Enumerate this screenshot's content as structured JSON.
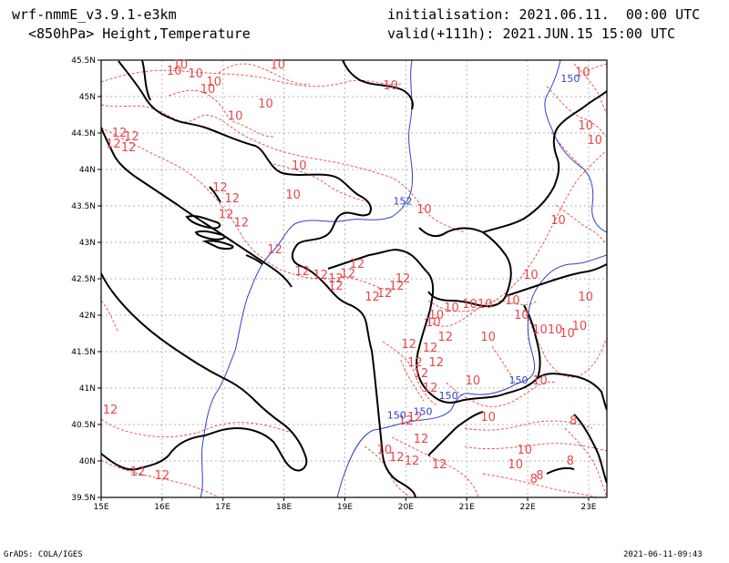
{
  "header": {
    "model": "wrf-nmmE_v3.9.1-e3km",
    "field": "<850hPa> Height,Temperature",
    "init_label": "initialisation:",
    "init_value": "2021.06.11.  00:00 UTC",
    "valid_label": "valid(+111h):",
    "valid_value": "2021.JUN.15 15:00 UTC"
  },
  "footer": {
    "left": "GrADS: COLA/IGES",
    "right": "2021-06-11-09:43"
  },
  "map": {
    "lon_range": [
      15,
      23.3
    ],
    "lat_range": [
      39.5,
      45.5
    ],
    "lon_ticks": [
      "15E",
      "16E",
      "17E",
      "18E",
      "19E",
      "20E",
      "21E",
      "22E",
      "23E"
    ],
    "lat_ticks": [
      "39.5N",
      "40N",
      "40.5N",
      "41N",
      "41.5N",
      "42N",
      "42.5N",
      "43N",
      "43.5N",
      "44N",
      "44.5N",
      "45N",
      "45.5N"
    ],
    "colors": {
      "temperature": "#e8474a",
      "height": "#3040c8",
      "border": "#000000",
      "grid": "#9a9a9a"
    },
    "height_labels": [
      {
        "text": "150",
        "lon": 22.7,
        "lat": 45.2
      },
      {
        "text": "152",
        "lon": 19.95,
        "lat": 43.52
      },
      {
        "text": "150",
        "lon": 21.85,
        "lat": 41.06
      },
      {
        "text": "150",
        "lon": 20.7,
        "lat": 40.85
      },
      {
        "text": "150",
        "lon": 20.28,
        "lat": 40.63
      },
      {
        "text": "150",
        "lon": 19.85,
        "lat": 40.58
      }
    ],
    "temp_labels": [
      {
        "text": "10",
        "lon": 16.3,
        "lat": 45.38
      },
      {
        "text": "10",
        "lon": 16.55,
        "lat": 45.26
      },
      {
        "text": "10",
        "lon": 16.85,
        "lat": 45.15
      },
      {
        "text": "10",
        "lon": 16.75,
        "lat": 45.05
      },
      {
        "text": "10",
        "lon": 16.2,
        "lat": 45.3
      },
      {
        "text": "10",
        "lon": 17.9,
        "lat": 45.38
      },
      {
        "text": "10",
        "lon": 19.75,
        "lat": 45.1
      },
      {
        "text": "10",
        "lon": 17.2,
        "lat": 44.68
      },
      {
        "text": "10",
        "lon": 17.7,
        "lat": 44.85
      },
      {
        "text": "12",
        "lon": 15.3,
        "lat": 44.45
      },
      {
        "text": "12",
        "lon": 15.5,
        "lat": 44.4
      },
      {
        "text": "12",
        "lon": 15.2,
        "lat": 44.3
      },
      {
        "text": "12",
        "lon": 15.45,
        "lat": 44.25
      },
      {
        "text": "10",
        "lon": 18.25,
        "lat": 44.0
      },
      {
        "text": "10",
        "lon": 18.15,
        "lat": 43.6
      },
      {
        "text": "12",
        "lon": 16.95,
        "lat": 43.7
      },
      {
        "text": "12",
        "lon": 17.15,
        "lat": 43.55
      },
      {
        "text": "12",
        "lon": 17.05,
        "lat": 43.33
      },
      {
        "text": "12",
        "lon": 17.3,
        "lat": 43.22
      },
      {
        "text": "12",
        "lon": 17.85,
        "lat": 42.85
      },
      {
        "text": "12",
        "lon": 18.3,
        "lat": 42.55
      },
      {
        "text": "12",
        "lon": 18.6,
        "lat": 42.5
      },
      {
        "text": "12",
        "lon": 18.85,
        "lat": 42.45
      },
      {
        "text": "12",
        "lon": 19.05,
        "lat": 42.52
      },
      {
        "text": "12",
        "lon": 19.2,
        "lat": 42.65
      },
      {
        "text": "12",
        "lon": 18.85,
        "lat": 42.35
      },
      {
        "text": "12",
        "lon": 19.45,
        "lat": 42.2
      },
      {
        "text": "12",
        "lon": 19.65,
        "lat": 42.25
      },
      {
        "text": "12",
        "lon": 19.85,
        "lat": 42.35
      },
      {
        "text": "12",
        "lon": 19.95,
        "lat": 42.45
      },
      {
        "text": "10",
        "lon": 20.3,
        "lat": 43.4
      },
      {
        "text": "10",
        "lon": 22.05,
        "lat": 42.5
      },
      {
        "text": "10",
        "lon": 21.75,
        "lat": 42.15
      },
      {
        "text": "10",
        "lon": 21.3,
        "lat": 42.1
      },
      {
        "text": "10",
        "lon": 20.5,
        "lat": 41.95
      },
      {
        "text": "10",
        "lon": 20.75,
        "lat": 42.05
      },
      {
        "text": "10",
        "lon": 21.05,
        "lat": 42.1
      },
      {
        "text": "10",
        "lon": 20.45,
        "lat": 41.85
      },
      {
        "text": "10",
        "lon": 21.9,
        "lat": 41.95
      },
      {
        "text": "10",
        "lon": 21.35,
        "lat": 41.65
      },
      {
        "text": "10",
        "lon": 22.2,
        "lat": 41.75
      },
      {
        "text": "10",
        "lon": 22.45,
        "lat": 41.75
      },
      {
        "text": "10",
        "lon": 22.65,
        "lat": 41.7
      },
      {
        "text": "10",
        "lon": 22.85,
        "lat": 41.8
      },
      {
        "text": "10",
        "lon": 22.5,
        "lat": 43.25
      },
      {
        "text": "10",
        "lon": 22.95,
        "lat": 44.55
      },
      {
        "text": "10",
        "lon": 23.1,
        "lat": 44.35
      },
      {
        "text": "10",
        "lon": 22.95,
        "lat": 42.2
      },
      {
        "text": "10",
        "lon": 22.9,
        "lat": 45.28
      },
      {
        "text": "12",
        "lon": 20.05,
        "lat": 41.55
      },
      {
        "text": "12",
        "lon": 20.4,
        "lat": 41.5
      },
      {
        "text": "12",
        "lon": 20.65,
        "lat": 41.65
      },
      {
        "text": "12",
        "lon": 20.15,
        "lat": 41.3
      },
      {
        "text": "12",
        "lon": 20.5,
        "lat": 41.3
      },
      {
        "text": "12",
        "lon": 20.25,
        "lat": 41.15
      },
      {
        "text": "12",
        "lon": 20.4,
        "lat": 40.95
      },
      {
        "text": "10",
        "lon": 21.1,
        "lat": 41.05
      },
      {
        "text": "10",
        "lon": 22.2,
        "lat": 41.05
      },
      {
        "text": "12",
        "lon": 15.15,
        "lat": 40.65
      },
      {
        "text": "12",
        "lon": 20.0,
        "lat": 40.5
      },
      {
        "text": "12",
        "lon": 20.15,
        "lat": 40.55
      },
      {
        "text": "12",
        "lon": 20.25,
        "lat": 40.25
      },
      {
        "text": "10",
        "lon": 19.65,
        "lat": 40.1
      },
      {
        "text": "12",
        "lon": 19.85,
        "lat": 40.0
      },
      {
        "text": "12",
        "lon": 20.1,
        "lat": 39.95
      },
      {
        "text": "12",
        "lon": 20.55,
        "lat": 39.9
      },
      {
        "text": "10",
        "lon": 21.8,
        "lat": 39.9
      },
      {
        "text": "10",
        "lon": 21.95,
        "lat": 40.1
      },
      {
        "text": "10",
        "lon": 21.35,
        "lat": 40.55
      },
      {
        "text": "8",
        "lon": 22.75,
        "lat": 40.5
      },
      {
        "text": "8",
        "lon": 22.7,
        "lat": 39.95
      },
      {
        "text": "8",
        "lon": 22.2,
        "lat": 39.75
      },
      {
        "text": "8",
        "lon": 22.1,
        "lat": 39.7
      },
      {
        "text": "12",
        "lon": 15.6,
        "lat": 39.8
      },
      {
        "text": "12",
        "lon": 16.0,
        "lat": 39.75
      }
    ]
  }
}
